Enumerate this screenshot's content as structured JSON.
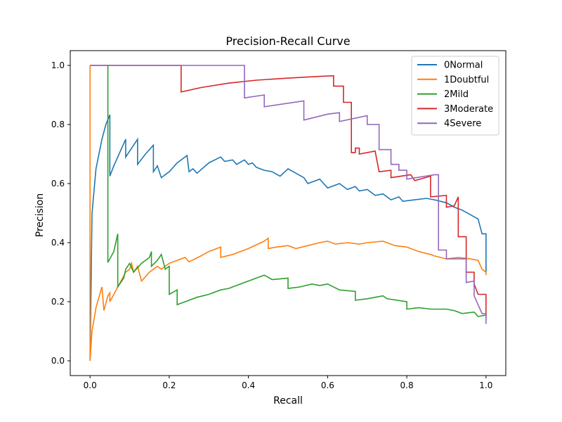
{
  "chart_data": {
    "type": "line",
    "title": "Precision-Recall Curve",
    "xlabel": "Recall",
    "ylabel": "Precision",
    "xlim": [
      -0.05,
      1.05
    ],
    "ylim": [
      -0.05,
      1.05
    ],
    "x_ticks": [
      0.0,
      0.2,
      0.4,
      0.6,
      0.8,
      1.0
    ],
    "x_tick_labels": [
      "0.0",
      "0.2",
      "0.4",
      "0.6",
      "0.8",
      "1.0"
    ],
    "y_ticks": [
      0.0,
      0.2,
      0.4,
      0.6,
      0.8,
      1.0
    ],
    "y_tick_labels": [
      "0.0",
      "0.2",
      "0.4",
      "0.6",
      "0.8",
      "1.0"
    ],
    "grid": false,
    "legend_position": "top-right",
    "series": [
      {
        "name": "0Normal",
        "color": "#1f77b4",
        "points": [
          [
            0.0,
            0.0
          ],
          [
            0.005,
            0.5
          ],
          [
            0.015,
            0.65
          ],
          [
            0.03,
            0.75
          ],
          [
            0.04,
            0.8
          ],
          [
            0.05,
            0.833
          ],
          [
            0.05,
            0.625
          ],
          [
            0.06,
            0.66
          ],
          [
            0.07,
            0.69
          ],
          [
            0.08,
            0.72
          ],
          [
            0.09,
            0.75
          ],
          [
            0.09,
            0.69
          ],
          [
            0.1,
            0.71
          ],
          [
            0.11,
            0.73
          ],
          [
            0.12,
            0.75
          ],
          [
            0.12,
            0.665
          ],
          [
            0.14,
            0.7
          ],
          [
            0.16,
            0.73
          ],
          [
            0.16,
            0.64
          ],
          [
            0.17,
            0.66
          ],
          [
            0.18,
            0.62
          ],
          [
            0.2,
            0.64
          ],
          [
            0.22,
            0.67
          ],
          [
            0.245,
            0.695
          ],
          [
            0.25,
            0.64
          ],
          [
            0.26,
            0.65
          ],
          [
            0.27,
            0.635
          ],
          [
            0.3,
            0.67
          ],
          [
            0.33,
            0.69
          ],
          [
            0.34,
            0.675
          ],
          [
            0.36,
            0.68
          ],
          [
            0.37,
            0.665
          ],
          [
            0.39,
            0.68
          ],
          [
            0.4,
            0.665
          ],
          [
            0.41,
            0.67
          ],
          [
            0.42,
            0.655
          ],
          [
            0.43,
            0.65
          ],
          [
            0.44,
            0.645
          ],
          [
            0.46,
            0.64
          ],
          [
            0.48,
            0.625
          ],
          [
            0.5,
            0.65
          ],
          [
            0.52,
            0.635
          ],
          [
            0.54,
            0.62
          ],
          [
            0.55,
            0.6
          ],
          [
            0.58,
            0.615
          ],
          [
            0.6,
            0.585
          ],
          [
            0.63,
            0.6
          ],
          [
            0.65,
            0.58
          ],
          [
            0.67,
            0.59
          ],
          [
            0.68,
            0.575
          ],
          [
            0.7,
            0.58
          ],
          [
            0.72,
            0.56
          ],
          [
            0.74,
            0.565
          ],
          [
            0.76,
            0.545
          ],
          [
            0.78,
            0.555
          ],
          [
            0.79,
            0.54
          ],
          [
            0.82,
            0.545
          ],
          [
            0.85,
            0.55
          ],
          [
            0.87,
            0.545
          ],
          [
            0.9,
            0.535
          ],
          [
            0.92,
            0.52
          ],
          [
            0.94,
            0.51
          ],
          [
            0.96,
            0.495
          ],
          [
            0.98,
            0.48
          ],
          [
            0.99,
            0.43
          ],
          [
            1.0,
            0.43
          ],
          [
            1.0,
            0.3
          ]
        ]
      },
      {
        "name": "1Doubtful",
        "color": "#ff7f0e",
        "points": [
          [
            0.0,
            1.0
          ],
          [
            0.0,
            0.0
          ],
          [
            0.005,
            0.1
          ],
          [
            0.01,
            0.14
          ],
          [
            0.015,
            0.18
          ],
          [
            0.03,
            0.25
          ],
          [
            0.035,
            0.17
          ],
          [
            0.045,
            0.22
          ],
          [
            0.05,
            0.23
          ],
          [
            0.05,
            0.2
          ],
          [
            0.07,
            0.25
          ],
          [
            0.09,
            0.3
          ],
          [
            0.1,
            0.31
          ],
          [
            0.105,
            0.33
          ],
          [
            0.11,
            0.3
          ],
          [
            0.12,
            0.32
          ],
          [
            0.13,
            0.27
          ],
          [
            0.15,
            0.3
          ],
          [
            0.17,
            0.32
          ],
          [
            0.18,
            0.31
          ],
          [
            0.2,
            0.33
          ],
          [
            0.22,
            0.34
          ],
          [
            0.24,
            0.35
          ],
          [
            0.25,
            0.335
          ],
          [
            0.28,
            0.355
          ],
          [
            0.3,
            0.37
          ],
          [
            0.33,
            0.385
          ],
          [
            0.33,
            0.35
          ],
          [
            0.36,
            0.36
          ],
          [
            0.38,
            0.37
          ],
          [
            0.4,
            0.38
          ],
          [
            0.44,
            0.405
          ],
          [
            0.45,
            0.415
          ],
          [
            0.45,
            0.38
          ],
          [
            0.47,
            0.385
          ],
          [
            0.5,
            0.39
          ],
          [
            0.52,
            0.38
          ],
          [
            0.55,
            0.39
          ],
          [
            0.58,
            0.4
          ],
          [
            0.6,
            0.405
          ],
          [
            0.62,
            0.395
          ],
          [
            0.65,
            0.4
          ],
          [
            0.68,
            0.395
          ],
          [
            0.7,
            0.4
          ],
          [
            0.74,
            0.405
          ],
          [
            0.77,
            0.39
          ],
          [
            0.8,
            0.385
          ],
          [
            0.83,
            0.37
          ],
          [
            0.86,
            0.36
          ],
          [
            0.87,
            0.355
          ],
          [
            0.9,
            0.345
          ],
          [
            0.93,
            0.35
          ],
          [
            0.96,
            0.345
          ],
          [
            0.98,
            0.34
          ],
          [
            0.99,
            0.31
          ],
          [
            1.0,
            0.3
          ],
          [
            1.0,
            0.29
          ]
        ]
      },
      {
        "name": "2Mild",
        "color": "#2ca02c",
        "points": [
          [
            0.045,
            1.0
          ],
          [
            0.045,
            0.333
          ],
          [
            0.06,
            0.37
          ],
          [
            0.07,
            0.43
          ],
          [
            0.07,
            0.25
          ],
          [
            0.085,
            0.28
          ],
          [
            0.09,
            0.31
          ],
          [
            0.1,
            0.33
          ],
          [
            0.11,
            0.3
          ],
          [
            0.13,
            0.33
          ],
          [
            0.15,
            0.35
          ],
          [
            0.155,
            0.37
          ],
          [
            0.155,
            0.32
          ],
          [
            0.17,
            0.34
          ],
          [
            0.18,
            0.36
          ],
          [
            0.19,
            0.31
          ],
          [
            0.2,
            0.32
          ],
          [
            0.2,
            0.225
          ],
          [
            0.22,
            0.24
          ],
          [
            0.22,
            0.19
          ],
          [
            0.24,
            0.2
          ],
          [
            0.27,
            0.215
          ],
          [
            0.3,
            0.225
          ],
          [
            0.33,
            0.24
          ],
          [
            0.35,
            0.245
          ],
          [
            0.38,
            0.26
          ],
          [
            0.42,
            0.28
          ],
          [
            0.44,
            0.29
          ],
          [
            0.46,
            0.275
          ],
          [
            0.5,
            0.28
          ],
          [
            0.5,
            0.245
          ],
          [
            0.53,
            0.25
          ],
          [
            0.56,
            0.26
          ],
          [
            0.58,
            0.255
          ],
          [
            0.6,
            0.26
          ],
          [
            0.63,
            0.24
          ],
          [
            0.67,
            0.235
          ],
          [
            0.67,
            0.205
          ],
          [
            0.7,
            0.21
          ],
          [
            0.74,
            0.22
          ],
          [
            0.75,
            0.21
          ],
          [
            0.8,
            0.2
          ],
          [
            0.8,
            0.175
          ],
          [
            0.83,
            0.18
          ],
          [
            0.86,
            0.175
          ],
          [
            0.9,
            0.175
          ],
          [
            0.92,
            0.17
          ],
          [
            0.94,
            0.16
          ],
          [
            0.97,
            0.165
          ],
          [
            0.98,
            0.15
          ],
          [
            1.0,
            0.155
          ],
          [
            1.0,
            0.16
          ]
        ]
      },
      {
        "name": "3Moderate",
        "color": "#d62728",
        "points": [
          [
            0.0,
            1.0
          ],
          [
            0.23,
            1.0
          ],
          [
            0.23,
            0.91
          ],
          [
            0.28,
            0.925
          ],
          [
            0.35,
            0.94
          ],
          [
            0.42,
            0.95
          ],
          [
            0.5,
            0.957
          ],
          [
            0.58,
            0.963
          ],
          [
            0.615,
            0.965
          ],
          [
            0.615,
            0.93
          ],
          [
            0.64,
            0.93
          ],
          [
            0.64,
            0.875
          ],
          [
            0.66,
            0.875
          ],
          [
            0.66,
            0.705
          ],
          [
            0.67,
            0.705
          ],
          [
            0.67,
            0.72
          ],
          [
            0.68,
            0.72
          ],
          [
            0.68,
            0.7
          ],
          [
            0.72,
            0.71
          ],
          [
            0.73,
            0.64
          ],
          [
            0.76,
            0.645
          ],
          [
            0.76,
            0.62
          ],
          [
            0.81,
            0.63
          ],
          [
            0.82,
            0.61
          ],
          [
            0.86,
            0.625
          ],
          [
            0.86,
            0.555
          ],
          [
            0.9,
            0.56
          ],
          [
            0.9,
            0.52
          ],
          [
            0.92,
            0.525
          ],
          [
            0.93,
            0.555
          ],
          [
            0.93,
            0.42
          ],
          [
            0.95,
            0.42
          ],
          [
            0.95,
            0.3
          ],
          [
            0.97,
            0.3
          ],
          [
            0.97,
            0.26
          ],
          [
            0.98,
            0.225
          ],
          [
            1.0,
            0.225
          ],
          [
            1.0,
            0.14
          ]
        ]
      },
      {
        "name": "4Severe",
        "color": "#9467bd",
        "points": [
          [
            0.0,
            1.0
          ],
          [
            0.39,
            1.0
          ],
          [
            0.39,
            0.89
          ],
          [
            0.44,
            0.9
          ],
          [
            0.44,
            0.86
          ],
          [
            0.54,
            0.88
          ],
          [
            0.54,
            0.815
          ],
          [
            0.6,
            0.835
          ],
          [
            0.63,
            0.84
          ],
          [
            0.63,
            0.81
          ],
          [
            0.7,
            0.83
          ],
          [
            0.7,
            0.8
          ],
          [
            0.73,
            0.8
          ],
          [
            0.73,
            0.715
          ],
          [
            0.76,
            0.715
          ],
          [
            0.76,
            0.665
          ],
          [
            0.78,
            0.665
          ],
          [
            0.78,
            0.645
          ],
          [
            0.8,
            0.645
          ],
          [
            0.8,
            0.615
          ],
          [
            0.87,
            0.63
          ],
          [
            0.88,
            0.63
          ],
          [
            0.88,
            0.375
          ],
          [
            0.9,
            0.375
          ],
          [
            0.9,
            0.345
          ],
          [
            0.95,
            0.345
          ],
          [
            0.95,
            0.265
          ],
          [
            0.97,
            0.27
          ],
          [
            0.97,
            0.22
          ],
          [
            0.99,
            0.16
          ],
          [
            1.0,
            0.16
          ],
          [
            1.0,
            0.125
          ]
        ]
      }
    ]
  }
}
